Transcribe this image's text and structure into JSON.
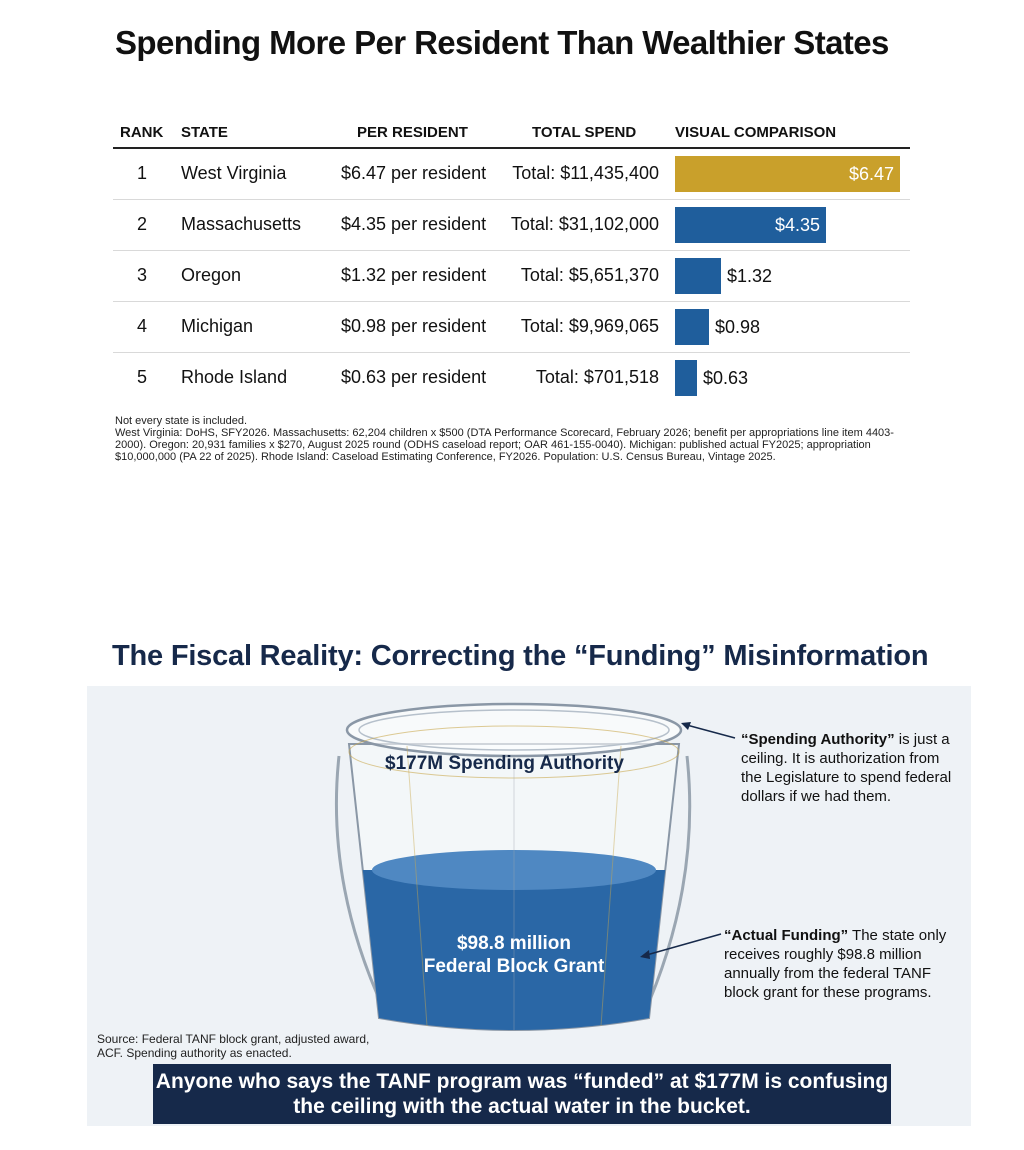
{
  "chart_data": [
    {
      "type": "bar",
      "title": "Spending More Per Resident Than Wealthier States",
      "columns": [
        "RANK",
        "STATE",
        "PER RESIDENT",
        "TOTAL SPEND",
        "VISUAL COMPARISON"
      ],
      "rows": [
        {
          "rank": "1",
          "state": "West Virginia",
          "per_resident": "$6.47 per resident",
          "total": "Total: $11,435,400",
          "value": 6.47,
          "bar_label": "$6.47"
        },
        {
          "rank": "2",
          "state": "Massachusetts",
          "per_resident": "$4.35 per resident",
          "total": "Total: $31,102,000",
          "value": 4.35,
          "bar_label": "$4.35"
        },
        {
          "rank": "3",
          "state": "Oregon",
          "per_resident": "$1.32 per resident",
          "total": "Total: $5,651,370",
          "value": 1.32,
          "bar_label": "$1.32"
        },
        {
          "rank": "4",
          "state": "Michigan",
          "per_resident": "$0.98 per resident",
          "total": "Total: $9,969,065",
          "value": 0.98,
          "bar_label": "$0.98"
        },
        {
          "rank": "5",
          "state": "Rhode Island",
          "per_resident": "$0.63 per resident",
          "total": "Total: $701,518",
          "value": 0.63,
          "bar_label": "$0.63"
        }
      ],
      "ylim": [
        0,
        6.8
      ],
      "colors": {
        "highlight": "#c9a02b",
        "default": "#1f5e9c"
      },
      "notes": [
        "Not every state is included.",
        "West Virginia: DoHS, SFY2026. Massachusetts: 62,204 children x $500 (DTA Performance Scorecard, February 2026; benefit per appropriations line item 4403-2000). Oregon: 20,931 families x $270, August 2025 round (ODHS caseload report; OAR 461-155-0040). Michigan: published actual FY2025; appropriation $10,000,000 (PA 22 of 2025). Rhode Island: Caseload Estimating Conference, FY2026. Population: U.S. Census Bureau, Vintage 2025."
      ]
    }
  ],
  "infographic": {
    "title": "The Fiscal Reality: Correcting the “Funding” Misinformation",
    "bucket_label": "$177M Spending Authority",
    "grant_line1": "$98.8 million",
    "grant_line2": "Federal Block Grant",
    "fill_fraction": 0.558,
    "annot1_bold": "“Spending Authority”",
    "annot1_rest": " is just a ceiling. It is authorization from the Legislature to spend federal dollars if we had them.",
    "annot2_bold": "“Actual Funding”",
    "annot2_rest": "  The state only receives roughly $98.8 million annually from the federal TANF block grant for these programs.",
    "source": "Source: Federal TANF block grant, adjusted award, ACF. Spending authority as enacted.",
    "banner": "Anyone who says the TANF program was “funded” at $177M is confusing the ceiling with the actual water in the bucket.",
    "colors": {
      "navy": "#16294a",
      "water": "#2a67a6"
    }
  }
}
